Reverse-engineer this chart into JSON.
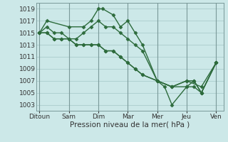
{
  "background_color": "#cce8e8",
  "grid_color": "#aacccc",
  "line_color": "#2d6b3c",
  "marker": "D",
  "marker_size": 2.5,
  "line_width": 1.0,
  "xlabel": "Pression niveau de la mer( hPa )",
  "xlabel_fontsize": 7.5,
  "tick_fontsize": 6.5,
  "ylim": [
    1002,
    1020
  ],
  "yticks": [
    1003,
    1005,
    1007,
    1009,
    1011,
    1013,
    1015,
    1017,
    1019
  ],
  "x_labels": [
    "Ditoun",
    "Sam",
    "Dim",
    "Mar",
    "Mer",
    "Jeu",
    "Ven"
  ],
  "x_positions": [
    0,
    2,
    4,
    6,
    8,
    10,
    12
  ],
  "line1_x": [
    0,
    0.5,
    2,
    3,
    3.5,
    4,
    4.3,
    5,
    5.5,
    6,
    6.5,
    7,
    8,
    8.5,
    9,
    10,
    10.5,
    11,
    12
  ],
  "line1_y": [
    1015,
    1017,
    1016,
    1016,
    1017,
    1019,
    1019,
    1018,
    1016,
    1017,
    1015,
    1013,
    1007,
    1006,
    1003,
    1006,
    1006,
    1005,
    1010
  ],
  "line2_x": [
    0,
    0.5,
    1,
    1.5,
    2,
    2.5,
    3,
    3.5,
    4,
    4.5,
    5,
    5.5,
    6,
    6.5,
    7,
    8,
    9,
    10,
    11,
    12
  ],
  "line2_y": [
    1015,
    1016,
    1015,
    1015,
    1014,
    1014,
    1015,
    1016,
    1017,
    1016,
    1016,
    1015,
    1014,
    1013,
    1012,
    1007,
    1006,
    1007,
    1006,
    1010
  ],
  "line3_x": [
    0,
    0.5,
    1,
    1.5,
    2,
    2.5,
    3,
    3.5,
    4,
    4.5,
    5,
    5.5,
    6,
    6.5,
    7,
    8,
    9,
    10,
    10.5,
    11,
    12
  ],
  "line3_y": [
    1015,
    1015,
    1014,
    1014,
    1014,
    1013,
    1013,
    1013,
    1013,
    1012,
    1012,
    1011,
    1010,
    1009,
    1008,
    1007,
    1006,
    1006,
    1007,
    1005,
    1010
  ],
  "line4_x": [
    0,
    0.5,
    1,
    1.5,
    2,
    2.5,
    3,
    3.5,
    4,
    4.5,
    5,
    5.5,
    6,
    6.5,
    7,
    8,
    9,
    10,
    10.5,
    11,
    12
  ],
  "line4_y": [
    1015,
    1015,
    1014,
    1014,
    1014,
    1013,
    1013,
    1013,
    1013,
    1012,
    1012,
    1011,
    1010,
    1009,
    1008,
    1007,
    1006,
    1007,
    1007,
    1005,
    1010
  ]
}
